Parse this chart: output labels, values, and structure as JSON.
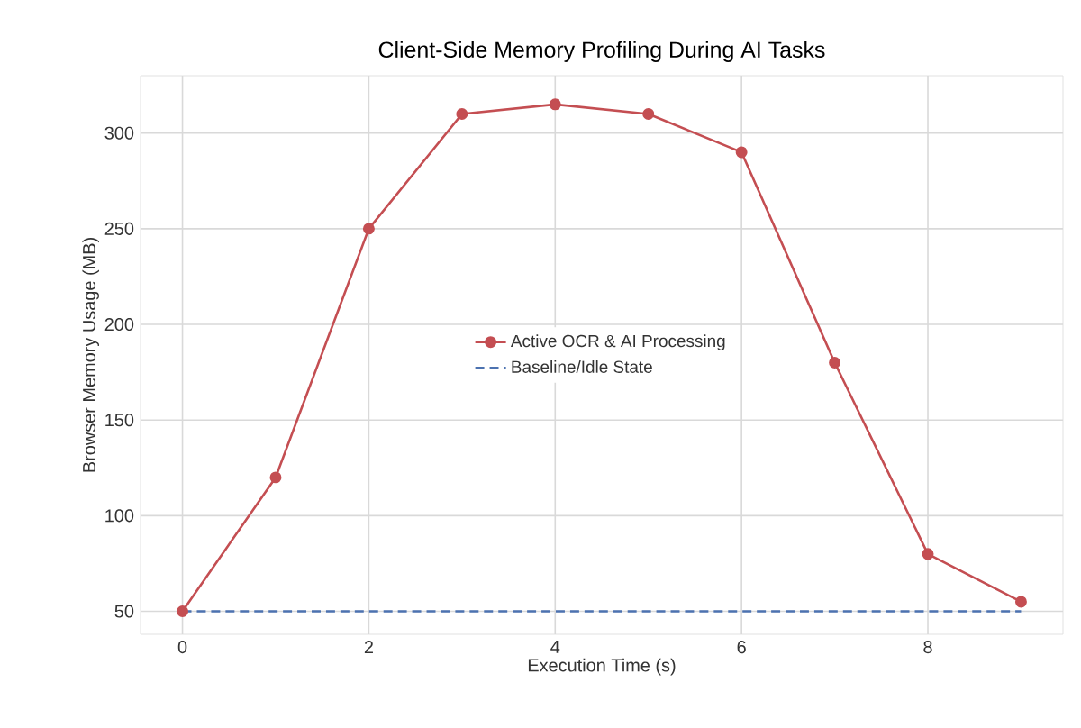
{
  "chart_data": {
    "type": "line",
    "title": "Client-Side Memory Profiling During AI Tasks",
    "xlabel": "Execution Time (s)",
    "ylabel": "Browser Memory Usage (MB)",
    "x": [
      0,
      1,
      2,
      3,
      4,
      5,
      6,
      7,
      8,
      9
    ],
    "series": [
      {
        "name": "Active OCR & AI Processing",
        "color": "#c44e52",
        "marker": "circle",
        "line_style": "solid",
        "values": [
          50,
          120,
          250,
          310,
          315,
          310,
          290,
          180,
          80,
          55
        ]
      },
      {
        "name": "Baseline/Idle State",
        "color": "#4c72b0",
        "marker": "none",
        "line_style": "dashed",
        "x": [
          0,
          9
        ],
        "values": [
          50,
          50
        ]
      }
    ],
    "xlim": [
      -0.45,
      9.45
    ],
    "ylim": [
      38,
      330
    ],
    "xticks": [
      0,
      2,
      4,
      6,
      8
    ],
    "yticks": [
      50,
      100,
      150,
      200,
      250,
      300
    ],
    "grid": true,
    "legend": "center"
  }
}
